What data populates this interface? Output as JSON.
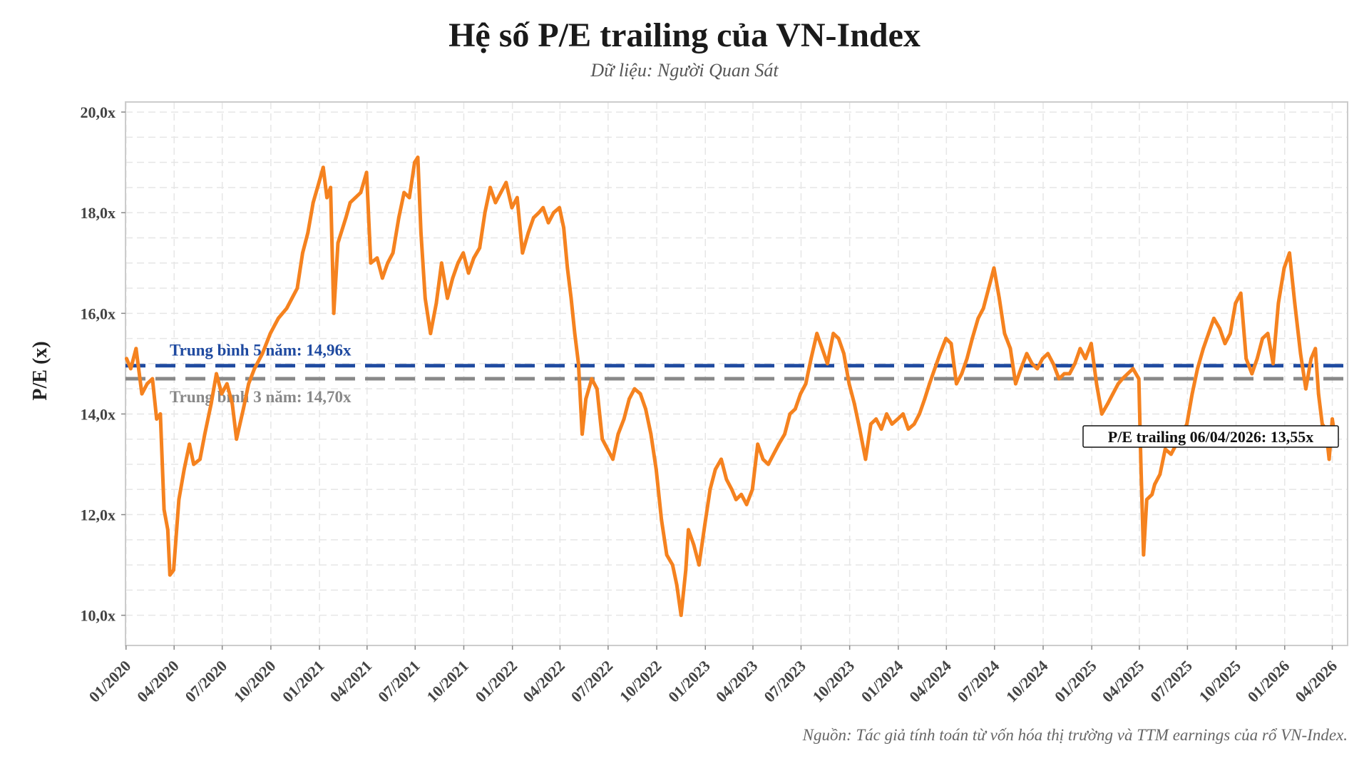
{
  "chart_data": {
    "type": "line",
    "title": "Hệ số P/E trailing của VN-Index",
    "subtitle": "Dữ liệu: Người Quan Sát",
    "ylabel": "P/E (x)",
    "xlabel": "",
    "ylim": [
      9.4,
      20.2
    ],
    "yticks": [
      "10,0x",
      "12,0x",
      "14,0x",
      "16,0x",
      "18,0x",
      "20,0x"
    ],
    "ytick_values": [
      10,
      12,
      14,
      16,
      18,
      20
    ],
    "xticks": [
      "01/2020",
      "04/2020",
      "07/2020",
      "10/2020",
      "01/2021",
      "04/2021",
      "07/2021",
      "10/2021",
      "01/2022",
      "04/2022",
      "07/2022",
      "10/2022",
      "01/2023",
      "04/2023",
      "07/2023",
      "10/2023",
      "01/2024",
      "04/2024",
      "07/2024",
      "10/2024",
      "01/2025",
      "04/2025",
      "07/2025",
      "10/2025",
      "01/2026",
      "04/2026"
    ],
    "grid": true,
    "series": [
      {
        "color": "#f5821f",
        "points": [
          [
            "2020-01-02",
            15.1
          ],
          [
            "2020-01-10",
            14.9
          ],
          [
            "2020-01-20",
            15.3
          ],
          [
            "2020-01-31",
            14.4
          ],
          [
            "2020-02-10",
            14.6
          ],
          [
            "2020-02-20",
            14.7
          ],
          [
            "2020-02-28",
            13.9
          ],
          [
            "2020-03-06",
            14.0
          ],
          [
            "2020-03-13",
            12.1
          ],
          [
            "2020-03-20",
            11.7
          ],
          [
            "2020-03-24",
            10.8
          ],
          [
            "2020-03-31",
            10.9
          ],
          [
            "2020-04-10",
            12.3
          ],
          [
            "2020-04-20",
            12.9
          ],
          [
            "2020-04-30",
            13.4
          ],
          [
            "2020-05-08",
            13.0
          ],
          [
            "2020-05-20",
            13.1
          ],
          [
            "2020-05-29",
            13.6
          ],
          [
            "2020-06-10",
            14.2
          ],
          [
            "2020-06-20",
            14.8
          ],
          [
            "2020-06-30",
            14.4
          ],
          [
            "2020-07-10",
            14.6
          ],
          [
            "2020-07-20",
            14.2
          ],
          [
            "2020-07-28",
            13.5
          ],
          [
            "2020-08-10",
            14.1
          ],
          [
            "2020-08-20",
            14.6
          ],
          [
            "2020-08-31",
            14.9
          ],
          [
            "2020-09-15",
            15.2
          ],
          [
            "2020-09-30",
            15.6
          ],
          [
            "2020-10-15",
            15.9
          ],
          [
            "2020-10-31",
            16.1
          ],
          [
            "2020-11-10",
            16.3
          ],
          [
            "2020-11-20",
            16.5
          ],
          [
            "2020-11-30",
            17.2
          ],
          [
            "2020-12-10",
            17.6
          ],
          [
            "2020-12-20",
            18.2
          ],
          [
            "2020-12-31",
            18.6
          ],
          [
            "2021-01-08",
            18.9
          ],
          [
            "2021-01-15",
            18.3
          ],
          [
            "2021-01-22",
            18.5
          ],
          [
            "2021-01-28",
            16.0
          ],
          [
            "2021-02-05",
            17.4
          ],
          [
            "2021-02-20",
            17.9
          ],
          [
            "2021-02-28",
            18.2
          ],
          [
            "2021-03-10",
            18.3
          ],
          [
            "2021-03-20",
            18.4
          ],
          [
            "2021-03-31",
            18.8
          ],
          [
            "2021-04-08",
            17.0
          ],
          [
            "2021-04-20",
            17.1
          ],
          [
            "2021-04-30",
            16.7
          ],
          [
            "2021-05-10",
            17.0
          ],
          [
            "2021-05-20",
            17.2
          ],
          [
            "2021-05-31",
            17.9
          ],
          [
            "2021-06-10",
            18.4
          ],
          [
            "2021-06-20",
            18.3
          ],
          [
            "2021-06-30",
            19.0
          ],
          [
            "2021-07-06",
            19.1
          ],
          [
            "2021-07-12",
            17.6
          ],
          [
            "2021-07-20",
            16.3
          ],
          [
            "2021-07-30",
            15.6
          ],
          [
            "2021-08-10",
            16.2
          ],
          [
            "2021-08-20",
            17.0
          ],
          [
            "2021-08-31",
            16.3
          ],
          [
            "2021-09-10",
            16.7
          ],
          [
            "2021-09-20",
            17.0
          ],
          [
            "2021-09-30",
            17.2
          ],
          [
            "2021-10-10",
            16.8
          ],
          [
            "2021-10-20",
            17.1
          ],
          [
            "2021-10-31",
            17.3
          ],
          [
            "2021-11-10",
            18.0
          ],
          [
            "2021-11-20",
            18.5
          ],
          [
            "2021-11-30",
            18.2
          ],
          [
            "2021-12-10",
            18.4
          ],
          [
            "2021-12-20",
            18.6
          ],
          [
            "2021-12-31",
            18.1
          ],
          [
            "2022-01-10",
            18.3
          ],
          [
            "2022-01-20",
            17.2
          ],
          [
            "2022-01-31",
            17.6
          ],
          [
            "2022-02-10",
            17.9
          ],
          [
            "2022-02-20",
            18.0
          ],
          [
            "2022-02-28",
            18.1
          ],
          [
            "2022-03-10",
            17.8
          ],
          [
            "2022-03-20",
            18.0
          ],
          [
            "2022-03-31",
            18.1
          ],
          [
            "2022-04-08",
            17.7
          ],
          [
            "2022-04-15",
            16.9
          ],
          [
            "2022-04-22",
            16.3
          ],
          [
            "2022-04-29",
            15.6
          ],
          [
            "2022-05-06",
            15.0
          ],
          [
            "2022-05-13",
            13.6
          ],
          [
            "2022-05-20",
            14.3
          ],
          [
            "2022-05-31",
            14.7
          ],
          [
            "2022-06-10",
            14.5
          ],
          [
            "2022-06-20",
            13.5
          ],
          [
            "2022-06-30",
            13.3
          ],
          [
            "2022-07-10",
            13.1
          ],
          [
            "2022-07-20",
            13.6
          ],
          [
            "2022-07-31",
            13.9
          ],
          [
            "2022-08-10",
            14.3
          ],
          [
            "2022-08-20",
            14.5
          ],
          [
            "2022-08-31",
            14.4
          ],
          [
            "2022-09-10",
            14.1
          ],
          [
            "2022-09-20",
            13.6
          ],
          [
            "2022-09-30",
            12.9
          ],
          [
            "2022-10-10",
            11.9
          ],
          [
            "2022-10-20",
            11.2
          ],
          [
            "2022-10-31",
            11.0
          ],
          [
            "2022-11-08",
            10.6
          ],
          [
            "2022-11-16",
            10.0
          ],
          [
            "2022-11-25",
            10.9
          ],
          [
            "2022-11-30",
            11.7
          ],
          [
            "2022-12-10",
            11.4
          ],
          [
            "2022-12-20",
            11.0
          ],
          [
            "2022-12-31",
            11.8
          ],
          [
            "2023-01-10",
            12.5
          ],
          [
            "2023-01-20",
            12.9
          ],
          [
            "2023-01-31",
            13.1
          ],
          [
            "2023-02-10",
            12.7
          ],
          [
            "2023-02-20",
            12.5
          ],
          [
            "2023-02-28",
            12.3
          ],
          [
            "2023-03-10",
            12.4
          ],
          [
            "2023-03-20",
            12.2
          ],
          [
            "2023-03-31",
            12.5
          ],
          [
            "2023-04-10",
            13.4
          ],
          [
            "2023-04-20",
            13.1
          ],
          [
            "2023-04-30",
            13.0
          ],
          [
            "2023-05-10",
            13.2
          ],
          [
            "2023-05-20",
            13.4
          ],
          [
            "2023-05-31",
            13.6
          ],
          [
            "2023-06-10",
            14.0
          ],
          [
            "2023-06-20",
            14.1
          ],
          [
            "2023-06-30",
            14.4
          ],
          [
            "2023-07-10",
            14.6
          ],
          [
            "2023-07-20",
            15.1
          ],
          [
            "2023-07-31",
            15.6
          ],
          [
            "2023-08-10",
            15.3
          ],
          [
            "2023-08-20",
            15.0
          ],
          [
            "2023-08-31",
            15.6
          ],
          [
            "2023-09-10",
            15.5
          ],
          [
            "2023-09-20",
            15.2
          ],
          [
            "2023-09-30",
            14.6
          ],
          [
            "2023-10-10",
            14.2
          ],
          [
            "2023-10-20",
            13.7
          ],
          [
            "2023-10-31",
            13.1
          ],
          [
            "2023-11-10",
            13.8
          ],
          [
            "2023-11-20",
            13.9
          ],
          [
            "2023-11-30",
            13.7
          ],
          [
            "2023-12-10",
            14.0
          ],
          [
            "2023-12-20",
            13.8
          ],
          [
            "2023-12-31",
            13.9
          ],
          [
            "2024-01-10",
            14.0
          ],
          [
            "2024-01-20",
            13.7
          ],
          [
            "2024-01-31",
            13.8
          ],
          [
            "2024-02-10",
            14.0
          ],
          [
            "2024-02-20",
            14.3
          ],
          [
            "2024-02-29",
            14.6
          ],
          [
            "2024-03-10",
            14.9
          ],
          [
            "2024-03-20",
            15.2
          ],
          [
            "2024-03-31",
            15.5
          ],
          [
            "2024-04-10",
            15.4
          ],
          [
            "2024-04-20",
            14.6
          ],
          [
            "2024-04-30",
            14.8
          ],
          [
            "2024-05-10",
            15.1
          ],
          [
            "2024-05-20",
            15.5
          ],
          [
            "2024-05-31",
            15.9
          ],
          [
            "2024-06-10",
            16.1
          ],
          [
            "2024-06-20",
            16.5
          ],
          [
            "2024-06-30",
            16.9
          ],
          [
            "2024-07-10",
            16.3
          ],
          [
            "2024-07-20",
            15.6
          ],
          [
            "2024-07-31",
            15.3
          ],
          [
            "2024-08-10",
            14.6
          ],
          [
            "2024-08-20",
            14.9
          ],
          [
            "2024-08-31",
            15.2
          ],
          [
            "2024-09-10",
            15.0
          ],
          [
            "2024-09-20",
            14.9
          ],
          [
            "2024-09-30",
            15.1
          ],
          [
            "2024-10-10",
            15.2
          ],
          [
            "2024-10-20",
            15.0
          ],
          [
            "2024-10-31",
            14.7
          ],
          [
            "2024-11-10",
            14.8
          ],
          [
            "2024-11-20",
            14.8
          ],
          [
            "2024-11-30",
            15.0
          ],
          [
            "2024-12-10",
            15.3
          ],
          [
            "2024-12-20",
            15.1
          ],
          [
            "2024-12-31",
            15.4
          ],
          [
            "2025-01-10",
            14.6
          ],
          [
            "2025-01-20",
            14.0
          ],
          [
            "2025-01-31",
            14.2
          ],
          [
            "2025-02-10",
            14.4
          ],
          [
            "2025-02-20",
            14.6
          ],
          [
            "2025-02-28",
            14.7
          ],
          [
            "2025-03-10",
            14.8
          ],
          [
            "2025-03-20",
            14.9
          ],
          [
            "2025-03-31",
            14.7
          ],
          [
            "2025-04-04",
            13.0
          ],
          [
            "2025-04-09",
            11.2
          ],
          [
            "2025-04-15",
            12.3
          ],
          [
            "2025-04-25",
            12.4
          ],
          [
            "2025-04-30",
            12.6
          ],
          [
            "2025-05-10",
            12.8
          ],
          [
            "2025-05-20",
            13.3
          ],
          [
            "2025-05-31",
            13.2
          ],
          [
            "2025-06-10",
            13.4
          ],
          [
            "2025-06-20",
            13.6
          ],
          [
            "2025-06-30",
            13.8
          ],
          [
            "2025-07-10",
            14.4
          ],
          [
            "2025-07-20",
            14.9
          ],
          [
            "2025-07-31",
            15.3
          ],
          [
            "2025-08-10",
            15.6
          ],
          [
            "2025-08-20",
            15.9
          ],
          [
            "2025-08-31",
            15.7
          ],
          [
            "2025-09-10",
            15.4
          ],
          [
            "2025-09-20",
            15.6
          ],
          [
            "2025-09-30",
            16.2
          ],
          [
            "2025-10-10",
            16.4
          ],
          [
            "2025-10-20",
            15.1
          ],
          [
            "2025-10-31",
            14.8
          ],
          [
            "2025-11-10",
            15.1
          ],
          [
            "2025-11-20",
            15.5
          ],
          [
            "2025-11-30",
            15.6
          ],
          [
            "2025-12-10",
            15.0
          ],
          [
            "2025-12-20",
            16.2
          ],
          [
            "2025-12-31",
            16.9
          ],
          [
            "2026-01-10",
            17.2
          ],
          [
            "2026-01-20",
            16.2
          ],
          [
            "2026-01-31",
            15.2
          ],
          [
            "2026-02-10",
            14.5
          ],
          [
            "2026-02-20",
            15.1
          ],
          [
            "2026-02-28",
            15.3
          ],
          [
            "2026-03-06",
            14.4
          ],
          [
            "2026-03-13",
            13.8
          ],
          [
            "2026-03-20",
            13.7
          ],
          [
            "2026-03-26",
            13.1
          ],
          [
            "2026-04-01",
            13.9
          ],
          [
            "2026-04-06",
            13.55
          ]
        ]
      }
    ],
    "reference_lines": [
      {
        "label": "Trung bình 5 năm: 14,96x",
        "value": 14.96,
        "color": "#1f4aa0"
      },
      {
        "label": "Trung bình 3 năm: 14,70x",
        "value": 14.7,
        "color": "#888888"
      }
    ],
    "annotation": {
      "text": "P/E trailing 06/04/2026: 13,55x",
      "date": "2026-04-06",
      "value": 13.55
    },
    "footer": "Nguồn: Tác giả tính toán từ vốn hóa thị trường và TTM earnings của rổ VN-Index."
  }
}
